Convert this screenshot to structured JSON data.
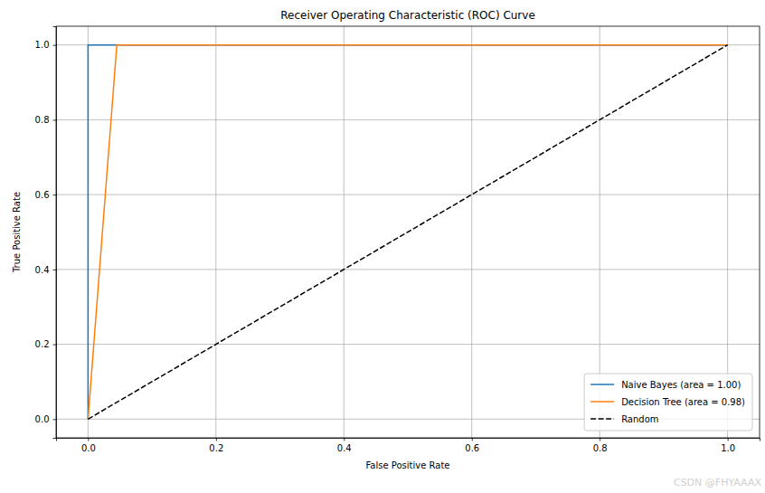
{
  "chart_data": {
    "type": "line",
    "title": "Receiver Operating Characteristic (ROC) Curve",
    "x_label": "False Positive Rate",
    "y_label": "True Positive Rate",
    "series": [
      {
        "name": "Naive Bayes (area = 1.00)",
        "color": "#1f77b4",
        "line_style": "solid",
        "x": [
          0,
          0,
          1
        ],
        "values": [
          0,
          1,
          1
        ]
      },
      {
        "name": "Decision Tree (area = 0.98)",
        "color": "#ff7f0e",
        "line_style": "solid",
        "x": [
          0,
          0.045,
          1
        ],
        "values": [
          0,
          1,
          1
        ]
      },
      {
        "name": "Random",
        "color": "#000000",
        "line_style": "dashed",
        "x": [
          0,
          1
        ],
        "values": [
          0,
          1
        ]
      }
    ],
    "xlim": [
      -0.05,
      1.05
    ],
    "ylim": [
      -0.05,
      1.05
    ],
    "xticks": [
      {
        "value": 0,
        "label": "0.0"
      },
      {
        "value": 0.2,
        "label": "0.2"
      },
      {
        "value": 0.4,
        "label": "0.4"
      },
      {
        "value": 0.6,
        "label": "0.6"
      },
      {
        "value": 0.8,
        "label": "0.8"
      },
      {
        "value": 1,
        "label": "1.0"
      }
    ],
    "yticks": [
      {
        "value": 0,
        "label": "0.0"
      },
      {
        "value": 0.2,
        "label": "0.2"
      },
      {
        "value": 0.4,
        "label": "0.4"
      },
      {
        "value": 0.6,
        "label": "0.6"
      },
      {
        "value": 0.8,
        "label": "0.8"
      },
      {
        "value": 1,
        "label": "1.0"
      }
    ],
    "grid": true,
    "legend": "lower right",
    "annotations": [
      "CSDN @FHYAAAX"
    ]
  }
}
